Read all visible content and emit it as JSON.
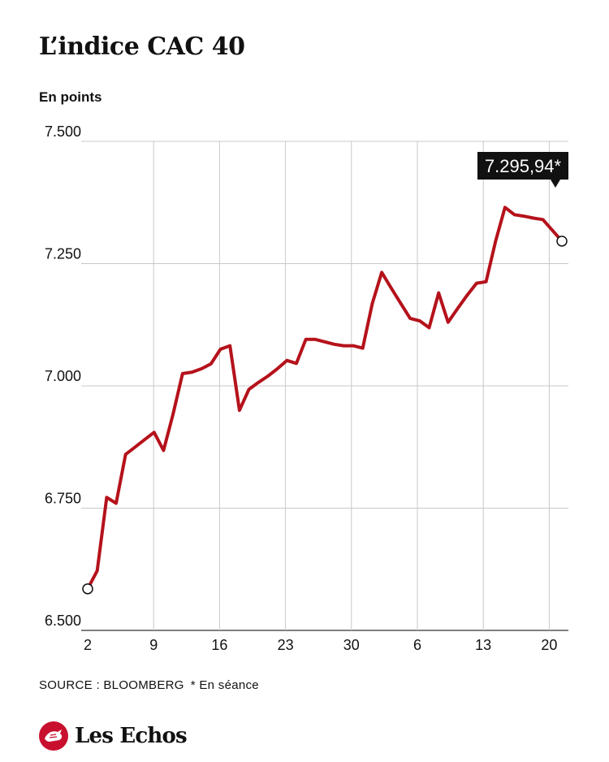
{
  "header": {
    "title": "L’indice CAC 40",
    "subtitle": "En points"
  },
  "footer": {
    "source": "SOURCE : BLOOMBERG",
    "note": "* En séance",
    "brand": "Les Echos"
  },
  "colors": {
    "line": "#b5121b",
    "grid": "#c8c8c8",
    "callout_bg": "#111111",
    "logo": "#c8102e"
  },
  "chart_data": {
    "type": "line",
    "title": "L’indice CAC 40",
    "ylabel": "En points",
    "ylim": [
      6500,
      7500
    ],
    "y_ticks": [
      6500,
      6750,
      7000,
      7250,
      7500
    ],
    "y_tick_labels": [
      "6.500",
      "6.750",
      "7.000",
      "7.250",
      "7.500"
    ],
    "x_range": [
      0,
      73
    ],
    "x_ticks": [
      0,
      7,
      14,
      21,
      28,
      35,
      42,
      49
    ],
    "x_tick_labels": [
      "2",
      "9",
      "16",
      "23",
      "30",
      "6",
      "13",
      "20"
    ],
    "grid": true,
    "callout": {
      "label": "7.295,94*",
      "value": 7295.94
    },
    "series": [
      {
        "x": [
          0,
          1,
          2,
          3,
          4,
          5,
          6,
          7,
          8,
          9,
          10,
          11,
          12,
          13,
          14,
          15,
          16,
          17,
          18,
          19,
          20,
          21,
          22,
          23,
          24,
          25,
          26,
          27,
          28,
          29,
          30,
          31,
          32,
          33,
          34,
          35,
          36,
          37,
          38,
          39,
          40,
          41,
          42,
          43,
          44,
          45,
          46,
          47,
          48,
          49,
          50
        ],
        "values": [
          6585,
          6622,
          6772,
          6760,
          6860,
          6875,
          6890,
          6905,
          6868,
          6942,
          7025,
          7028,
          7035,
          7045,
          7075,
          7082,
          6950,
          6993,
          7007,
          7020,
          7035,
          7052,
          7046,
          7095,
          7095,
          7090,
          7085,
          7082,
          7082,
          7077,
          7168,
          7232,
          7200,
          7169,
          7138,
          7133,
          7119,
          7190,
          7130,
          7158,
          7185,
          7210,
          7213,
          7295,
          7365,
          7350,
          7347,
          7343,
          7340,
          7318,
          7295.94
        ]
      }
    ]
  }
}
